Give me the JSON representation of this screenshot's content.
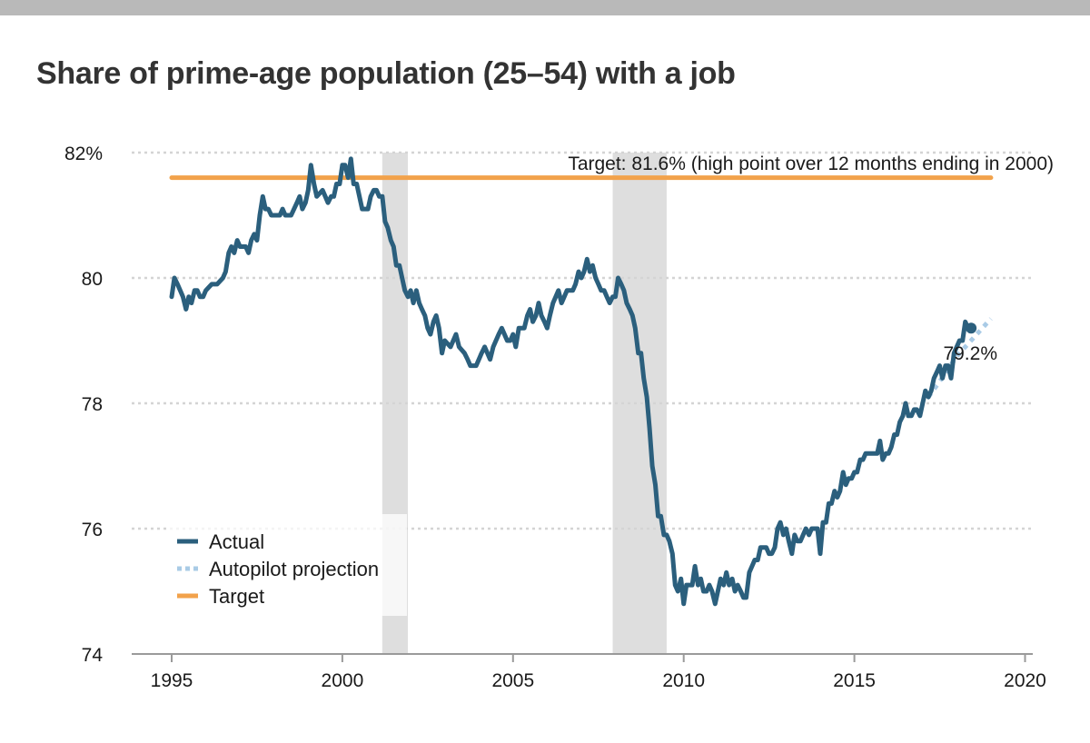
{
  "title": "Share of prime-age population (25–54) with a job",
  "chart_data": {
    "type": "line",
    "title": "Share of prime-age population (25–54) with a job",
    "xlabel": "",
    "ylabel": "",
    "xlim": [
      1994.5,
      2020
    ],
    "ylim": [
      74,
      82
    ],
    "grid": true,
    "x_ticks": [
      1995,
      2000,
      2005,
      2010,
      2015,
      2020
    ],
    "y_ticks": [
      {
        "value": 74,
        "label": "74"
      },
      {
        "value": 76,
        "label": "76"
      },
      {
        "value": 78,
        "label": "78"
      },
      {
        "value": 80,
        "label": "80"
      },
      {
        "value": 82,
        "label": "82%"
      }
    ],
    "recessions": [
      {
        "start": 2001.17,
        "end": 2001.92
      },
      {
        "start": 2007.92,
        "end": 2009.5
      }
    ],
    "series": [
      {
        "name": "Actual",
        "color": "#2b5f7d",
        "style": "solid",
        "points": [
          [
            1995.0,
            79.7
          ],
          [
            1995.08,
            80.0
          ],
          [
            1995.17,
            79.9
          ],
          [
            1995.25,
            79.8
          ],
          [
            1995.33,
            79.7
          ],
          [
            1995.42,
            79.5
          ],
          [
            1995.5,
            79.7
          ],
          [
            1995.58,
            79.6
          ],
          [
            1995.67,
            79.8
          ],
          [
            1995.75,
            79.8
          ],
          [
            1995.83,
            79.7
          ],
          [
            1995.92,
            79.7
          ],
          [
            1996.0,
            79.8
          ],
          [
            1996.17,
            79.9
          ],
          [
            1996.33,
            79.9
          ],
          [
            1996.5,
            80.0
          ],
          [
            1996.58,
            80.1
          ],
          [
            1996.67,
            80.4
          ],
          [
            1996.75,
            80.5
          ],
          [
            1996.83,
            80.4
          ],
          [
            1996.92,
            80.6
          ],
          [
            1997.0,
            80.5
          ],
          [
            1997.17,
            80.5
          ],
          [
            1997.25,
            80.4
          ],
          [
            1997.33,
            80.6
          ],
          [
            1997.42,
            80.7
          ],
          [
            1997.5,
            80.6
          ],
          [
            1997.58,
            81.0
          ],
          [
            1997.67,
            81.3
          ],
          [
            1997.75,
            81.1
          ],
          [
            1997.83,
            81.1
          ],
          [
            1997.92,
            81.0
          ],
          [
            1998.08,
            81.0
          ],
          [
            1998.17,
            81.0
          ],
          [
            1998.25,
            81.1
          ],
          [
            1998.33,
            81.0
          ],
          [
            1998.5,
            81.0
          ],
          [
            1998.67,
            81.2
          ],
          [
            1998.75,
            81.3
          ],
          [
            1998.83,
            81.1
          ],
          [
            1998.92,
            81.2
          ],
          [
            1999.0,
            81.4
          ],
          [
            1999.08,
            81.8
          ],
          [
            1999.17,
            81.5
          ],
          [
            1999.25,
            81.3
          ],
          [
            1999.42,
            81.4
          ],
          [
            1999.5,
            81.3
          ],
          [
            1999.58,
            81.2
          ],
          [
            1999.67,
            81.3
          ],
          [
            1999.75,
            81.3
          ],
          [
            1999.83,
            81.5
          ],
          [
            1999.92,
            81.5
          ],
          [
            2000.0,
            81.8
          ],
          [
            2000.08,
            81.8
          ],
          [
            2000.17,
            81.6
          ],
          [
            2000.25,
            81.9
          ],
          [
            2000.33,
            81.5
          ],
          [
            2000.42,
            81.5
          ],
          [
            2000.5,
            81.3
          ],
          [
            2000.58,
            81.1
          ],
          [
            2000.67,
            81.1
          ],
          [
            2000.75,
            81.1
          ],
          [
            2000.83,
            81.3
          ],
          [
            2000.92,
            81.4
          ],
          [
            2001.0,
            81.4
          ],
          [
            2001.08,
            81.3
          ],
          [
            2001.17,
            81.3
          ],
          [
            2001.25,
            80.9
          ],
          [
            2001.33,
            80.8
          ],
          [
            2001.42,
            80.6
          ],
          [
            2001.5,
            80.5
          ],
          [
            2001.58,
            80.2
          ],
          [
            2001.67,
            80.2
          ],
          [
            2001.75,
            80.0
          ],
          [
            2001.83,
            79.8
          ],
          [
            2001.92,
            79.7
          ],
          [
            2002.0,
            79.8
          ],
          [
            2002.08,
            79.6
          ],
          [
            2002.17,
            79.8
          ],
          [
            2002.25,
            79.6
          ],
          [
            2002.33,
            79.5
          ],
          [
            2002.42,
            79.4
          ],
          [
            2002.5,
            79.2
          ],
          [
            2002.58,
            79.1
          ],
          [
            2002.67,
            79.3
          ],
          [
            2002.75,
            79.4
          ],
          [
            2002.83,
            79.2
          ],
          [
            2002.92,
            78.8
          ],
          [
            2003.0,
            79.0
          ],
          [
            2003.17,
            78.9
          ],
          [
            2003.25,
            79.0
          ],
          [
            2003.33,
            79.1
          ],
          [
            2003.42,
            78.9
          ],
          [
            2003.58,
            78.8
          ],
          [
            2003.67,
            78.7
          ],
          [
            2003.75,
            78.6
          ],
          [
            2003.83,
            78.6
          ],
          [
            2003.92,
            78.6
          ],
          [
            2004.0,
            78.7
          ],
          [
            2004.08,
            78.8
          ],
          [
            2004.17,
            78.9
          ],
          [
            2004.25,
            78.8
          ],
          [
            2004.33,
            78.7
          ],
          [
            2004.42,
            78.9
          ],
          [
            2004.5,
            79.0
          ],
          [
            2004.58,
            79.1
          ],
          [
            2004.67,
            79.2
          ],
          [
            2004.75,
            79.1
          ],
          [
            2004.83,
            79.0
          ],
          [
            2004.92,
            79.0
          ],
          [
            2005.0,
            79.1
          ],
          [
            2005.08,
            78.9
          ],
          [
            2005.17,
            79.2
          ],
          [
            2005.25,
            79.2
          ],
          [
            2005.33,
            79.2
          ],
          [
            2005.42,
            79.4
          ],
          [
            2005.5,
            79.5
          ],
          [
            2005.58,
            79.3
          ],
          [
            2005.67,
            79.4
          ],
          [
            2005.75,
            79.6
          ],
          [
            2005.83,
            79.4
          ],
          [
            2005.92,
            79.3
          ],
          [
            2006.0,
            79.2
          ],
          [
            2006.08,
            79.4
          ],
          [
            2006.17,
            79.6
          ],
          [
            2006.25,
            79.7
          ],
          [
            2006.33,
            79.8
          ],
          [
            2006.42,
            79.6
          ],
          [
            2006.5,
            79.7
          ],
          [
            2006.58,
            79.8
          ],
          [
            2006.67,
            79.8
          ],
          [
            2006.75,
            79.8
          ],
          [
            2006.83,
            79.9
          ],
          [
            2006.92,
            80.1
          ],
          [
            2007.0,
            80.0
          ],
          [
            2007.08,
            80.1
          ],
          [
            2007.17,
            80.3
          ],
          [
            2007.25,
            80.1
          ],
          [
            2007.33,
            80.2
          ],
          [
            2007.42,
            80.0
          ],
          [
            2007.5,
            79.9
          ],
          [
            2007.58,
            79.8
          ],
          [
            2007.67,
            79.8
          ],
          [
            2007.75,
            79.7
          ],
          [
            2007.83,
            79.6
          ],
          [
            2007.92,
            79.7
          ],
          [
            2008.0,
            79.7
          ],
          [
            2008.08,
            80.0
          ],
          [
            2008.17,
            79.9
          ],
          [
            2008.25,
            79.8
          ],
          [
            2008.33,
            79.6
          ],
          [
            2008.42,
            79.5
          ],
          [
            2008.5,
            79.4
          ],
          [
            2008.58,
            79.2
          ],
          [
            2008.67,
            78.8
          ],
          [
            2008.75,
            78.8
          ],
          [
            2008.83,
            78.4
          ],
          [
            2008.92,
            78.1
          ],
          [
            2009.0,
            77.6
          ],
          [
            2009.08,
            77.0
          ],
          [
            2009.17,
            76.7
          ],
          [
            2009.25,
            76.2
          ],
          [
            2009.33,
            76.2
          ],
          [
            2009.42,
            75.9
          ],
          [
            2009.5,
            75.9
          ],
          [
            2009.58,
            75.8
          ],
          [
            2009.67,
            75.6
          ],
          [
            2009.75,
            75.1
          ],
          [
            2009.83,
            75.0
          ],
          [
            2009.92,
            75.2
          ],
          [
            2010.0,
            74.8
          ],
          [
            2010.08,
            75.1
          ],
          [
            2010.17,
            75.1
          ],
          [
            2010.25,
            75.1
          ],
          [
            2010.33,
            75.4
          ],
          [
            2010.42,
            75.1
          ],
          [
            2010.5,
            75.2
          ],
          [
            2010.58,
            75.0
          ],
          [
            2010.67,
            75.0
          ],
          [
            2010.75,
            75.1
          ],
          [
            2010.83,
            75.0
          ],
          [
            2010.92,
            74.8
          ],
          [
            2011.0,
            75.0
          ],
          [
            2011.08,
            75.2
          ],
          [
            2011.17,
            75.1
          ],
          [
            2011.25,
            75.3
          ],
          [
            2011.33,
            75.1
          ],
          [
            2011.42,
            75.2
          ],
          [
            2011.5,
            75.0
          ],
          [
            2011.58,
            75.1
          ],
          [
            2011.67,
            75.0
          ],
          [
            2011.75,
            74.9
          ],
          [
            2011.83,
            74.9
          ],
          [
            2011.92,
            75.3
          ],
          [
            2012.0,
            75.4
          ],
          [
            2012.08,
            75.5
          ],
          [
            2012.17,
            75.5
          ],
          [
            2012.25,
            75.7
          ],
          [
            2012.33,
            75.7
          ],
          [
            2012.42,
            75.7
          ],
          [
            2012.5,
            75.6
          ],
          [
            2012.58,
            75.6
          ],
          [
            2012.67,
            75.7
          ],
          [
            2012.75,
            76.0
          ],
          [
            2012.83,
            76.1
          ],
          [
            2012.92,
            75.9
          ],
          [
            2013.0,
            76.0
          ],
          [
            2013.08,
            75.8
          ],
          [
            2013.17,
            75.6
          ],
          [
            2013.25,
            75.9
          ],
          [
            2013.33,
            75.8
          ],
          [
            2013.42,
            75.8
          ],
          [
            2013.5,
            75.9
          ],
          [
            2013.58,
            76.0
          ],
          [
            2013.67,
            75.9
          ],
          [
            2013.75,
            76.0
          ],
          [
            2013.83,
            76.0
          ],
          [
            2013.92,
            76.0
          ],
          [
            2014.0,
            75.6
          ],
          [
            2014.08,
            76.1
          ],
          [
            2014.17,
            76.1
          ],
          [
            2014.25,
            76.4
          ],
          [
            2014.33,
            76.4
          ],
          [
            2014.42,
            76.6
          ],
          [
            2014.5,
            76.5
          ],
          [
            2014.58,
            76.6
          ],
          [
            2014.67,
            76.9
          ],
          [
            2014.75,
            76.7
          ],
          [
            2014.83,
            76.8
          ],
          [
            2014.92,
            76.8
          ],
          [
            2015.0,
            76.9
          ],
          [
            2015.08,
            76.9
          ],
          [
            2015.17,
            77.1
          ],
          [
            2015.25,
            77.1
          ],
          [
            2015.33,
            77.2
          ],
          [
            2015.42,
            77.2
          ],
          [
            2015.5,
            77.2
          ],
          [
            2015.58,
            77.2
          ],
          [
            2015.67,
            77.2
          ],
          [
            2015.75,
            77.4
          ],
          [
            2015.83,
            77.1
          ],
          [
            2015.92,
            77.2
          ],
          [
            2016.0,
            77.2
          ],
          [
            2016.08,
            77.3
          ],
          [
            2016.17,
            77.5
          ],
          [
            2016.25,
            77.5
          ],
          [
            2016.33,
            77.7
          ],
          [
            2016.42,
            77.8
          ],
          [
            2016.5,
            78.0
          ],
          [
            2016.58,
            77.8
          ],
          [
            2016.67,
            77.8
          ],
          [
            2016.75,
            77.9
          ],
          [
            2016.83,
            77.9
          ],
          [
            2016.92,
            77.8
          ],
          [
            2017.0,
            78.0
          ],
          [
            2017.08,
            78.2
          ],
          [
            2017.17,
            78.1
          ],
          [
            2017.25,
            78.2
          ],
          [
            2017.33,
            78.4
          ],
          [
            2017.42,
            78.5
          ],
          [
            2017.5,
            78.6
          ],
          [
            2017.58,
            78.4
          ],
          [
            2017.67,
            78.6
          ],
          [
            2017.75,
            78.6
          ],
          [
            2017.83,
            78.4
          ],
          [
            2017.92,
            78.8
          ],
          [
            2018.0,
            78.9
          ],
          [
            2018.08,
            79.0
          ],
          [
            2018.17,
            79.0
          ],
          [
            2018.25,
            79.3
          ],
          [
            2018.33,
            79.2
          ],
          [
            2018.42,
            79.2
          ]
        ]
      },
      {
        "name": "Autopilot projection",
        "color": "#a9cbe6",
        "style": "dotted",
        "points": [
          [
            2017.17,
            78.1
          ],
          [
            2017.5,
            78.35
          ],
          [
            2018.0,
            78.75
          ],
          [
            2018.5,
            79.05
          ],
          [
            2019.0,
            79.35
          ]
        ]
      },
      {
        "name": "Target",
        "color": "#f2a24b",
        "style": "solid",
        "points": [
          [
            1995.0,
            81.6
          ],
          [
            2019.0,
            81.6
          ]
        ]
      }
    ],
    "end_point": {
      "x": 2018.42,
      "y": 79.2,
      "label": "79.2%"
    },
    "annotations": {
      "target_label": "Target: 81.6% (high point over 12 months ending in 2000)",
      "end_label": "79.2%"
    },
    "legend": {
      "position": "bottom-left",
      "items": [
        {
          "label": "Actual",
          "color": "#2b5f7d",
          "style": "solid"
        },
        {
          "label": "Autopilot projection",
          "color": "#a9cbe6",
          "style": "dotted"
        },
        {
          "label": "Target",
          "color": "#f2a24b",
          "style": "solid"
        }
      ]
    }
  }
}
